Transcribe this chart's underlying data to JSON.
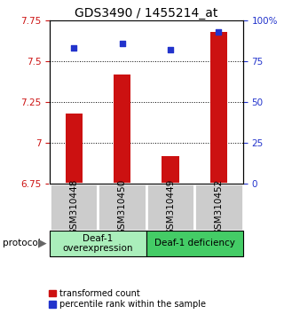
{
  "title": "GDS3490 / 1455214_at",
  "samples": [
    "GSM310448",
    "GSM310450",
    "GSM310449",
    "GSM310452"
  ],
  "bar_values": [
    7.18,
    7.42,
    6.92,
    7.68
  ],
  "scatter_values": [
    83,
    86,
    82,
    93
  ],
  "ylim_left": [
    6.75,
    7.75
  ],
  "ylim_right": [
    0,
    100
  ],
  "yticks_left": [
    6.75,
    7.0,
    7.25,
    7.5,
    7.75
  ],
  "ytick_labels_left": [
    "6.75",
    "7",
    "7.25",
    "7.5",
    "7.75"
  ],
  "yticks_right": [
    0,
    25,
    50,
    75,
    100
  ],
  "ytick_labels_right": [
    "0",
    "25",
    "50",
    "75",
    "100%"
  ],
  "hlines": [
    7.0,
    7.25,
    7.5
  ],
  "bar_color": "#cc1111",
  "scatter_color": "#2233cc",
  "bar_bottom": 6.75,
  "bar_width": 0.35,
  "group1_label": "Deaf-1\noverexpression",
  "group2_label": "Deaf-1 deficiency",
  "group1_color": "#aaeebb",
  "group2_color": "#44cc66",
  "group1_indices": [
    0,
    1
  ],
  "group2_indices": [
    2,
    3
  ],
  "protocol_label": "protocol",
  "legend_bar_label": "transformed count",
  "legend_scatter_label": "percentile rank within the sample",
  "title_fontsize": 10,
  "tick_fontsize": 7.5,
  "label_fontsize": 7.5,
  "legend_fontsize": 7
}
